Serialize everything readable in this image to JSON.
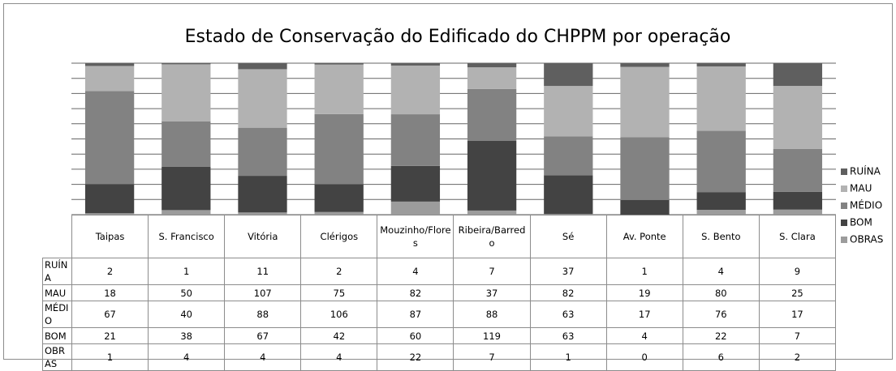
{
  "chart_data": {
    "type": "bar",
    "stacked": "percent",
    "title": "Estado de Conservação do Edificado do CHPPM por operação",
    "categories": [
      "Taipas",
      "S. Francisco",
      "Vitória",
      "Clérigos",
      "Mouzinho/Flores",
      "Ribeira/Barredo",
      "Sé",
      "Av. Ponte",
      "S. Bento",
      "S. Clara"
    ],
    "series": [
      {
        "name": "RUÍNA",
        "color": "#5f5f5f",
        "values": [
          2,
          1,
          11,
          2,
          4,
          7,
          37,
          1,
          4,
          9
        ]
      },
      {
        "name": "MAU",
        "color": "#b2b2b2",
        "values": [
          18,
          50,
          107,
          75,
          82,
          37,
          82,
          19,
          80,
          25
        ]
      },
      {
        "name": "MÉDIO",
        "color": "#828282",
        "values": [
          67,
          40,
          88,
          106,
          87,
          88,
          63,
          17,
          76,
          17
        ]
      },
      {
        "name": "BOM",
        "color": "#434343",
        "values": [
          21,
          38,
          67,
          42,
          60,
          119,
          63,
          4,
          22,
          7
        ]
      },
      {
        "name": "OBRAS",
        "color": "#9c9c9c",
        "values": [
          1,
          4,
          4,
          4,
          22,
          7,
          1,
          0,
          6,
          2
        ]
      }
    ],
    "ylim": [
      0,
      100
    ],
    "yticks": [
      0,
      10,
      20,
      30,
      40,
      50,
      60,
      70,
      80,
      90,
      100
    ],
    "grid": true,
    "legend": "right"
  }
}
